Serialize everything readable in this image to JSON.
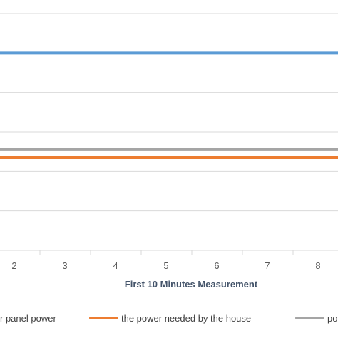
{
  "chart_data": {
    "type": "line",
    "xlabel": "First 10 Minutes Measurement",
    "categories": [
      "2",
      "3",
      "4",
      "5",
      "6",
      "7",
      "8"
    ],
    "ylim": [
      0,
      6
    ],
    "grid": true,
    "legend_placement": "bottom",
    "series": [
      {
        "name": "solar panel power",
        "legend_text": "r panel power",
        "color": "#5b9bd5",
        "values": [
          5,
          5,
          5,
          5,
          5,
          5,
          5
        ]
      },
      {
        "name": "the power needed by the house",
        "legend_text": "the power needed by the house",
        "color": "#ed7d31",
        "values": [
          2.35,
          2.35,
          2.35,
          2.35,
          2.35,
          2.35,
          2.35
        ]
      },
      {
        "name": "po",
        "legend_text": "po",
        "color": "#a5a5a5",
        "values": [
          2.55,
          2.55,
          2.55,
          2.55,
          2.55,
          2.55,
          2.55
        ]
      }
    ]
  }
}
